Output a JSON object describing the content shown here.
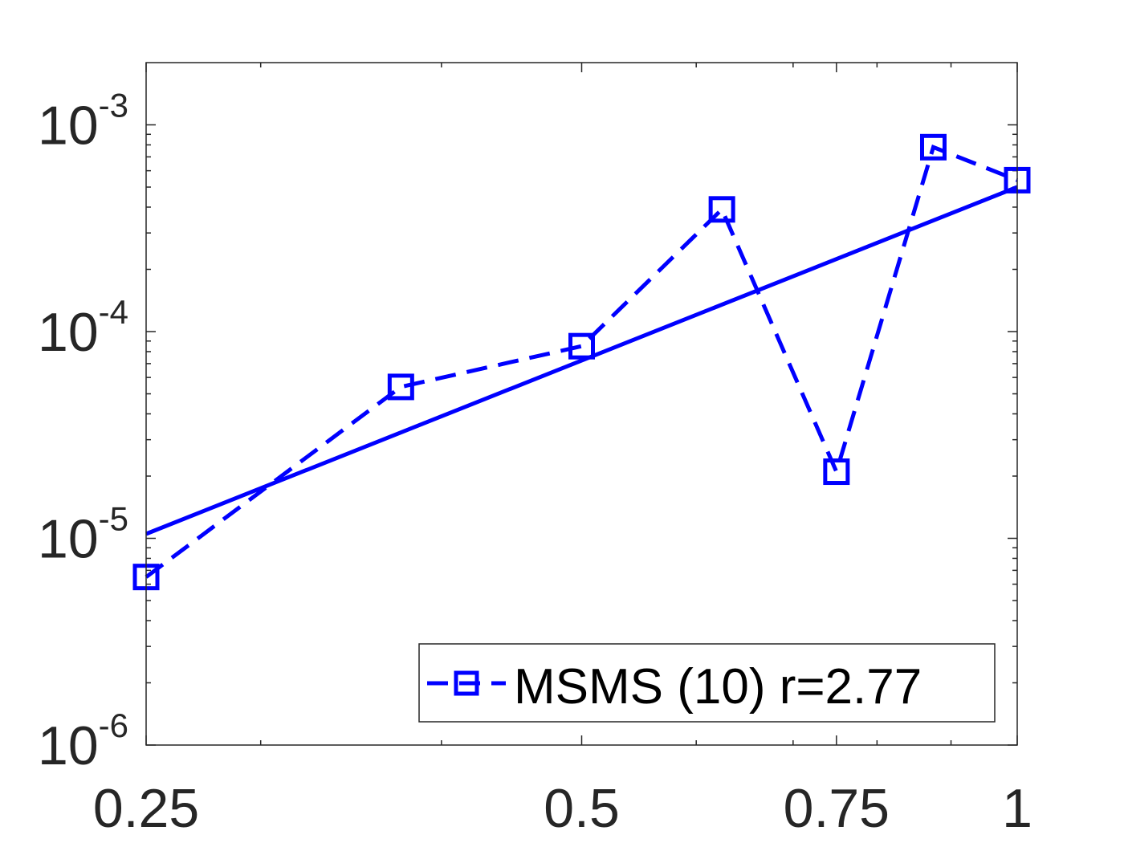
{
  "chart_data": {
    "type": "line",
    "x_scale": "log",
    "y_scale": "log",
    "xlim": [
      0.25,
      1
    ],
    "ylim": [
      1e-06,
      0.002
    ],
    "x_ticks": [
      {
        "value": 0.25,
        "label": "0.25"
      },
      {
        "value": 0.5,
        "label": "0.5"
      },
      {
        "value": 0.75,
        "label": "0.75"
      },
      {
        "value": 1,
        "label": "1"
      }
    ],
    "y_ticks": [
      {
        "value": 1e-06,
        "base": "10",
        "exp": "-6"
      },
      {
        "value": 1e-05,
        "base": "10",
        "exp": "-5"
      },
      {
        "value": 0.0001,
        "base": "10",
        "exp": "-4"
      },
      {
        "value": 0.001,
        "base": "10",
        "exp": "-3"
      }
    ],
    "series": [
      {
        "name": "MSMS (10) r=2.77",
        "style": "dashed",
        "marker": "square",
        "color": "#0000ff",
        "x": [
          0.25,
          0.375,
          0.5,
          0.625,
          0.75,
          0.875,
          1
        ],
        "y": [
          6.5e-06,
          5.4e-05,
          8.5e-05,
          0.00039,
          2.1e-05,
          0.00078,
          0.00054
        ]
      },
      {
        "style": "solid",
        "marker": "none",
        "color": "#0000ff",
        "x": [
          0.25,
          1
        ],
        "y": [
          1.05e-05,
          0.0005
        ]
      }
    ],
    "legend": {
      "position": "bottom-right",
      "entries": [
        "MSMS (10) r=2.77"
      ]
    },
    "grid": false
  }
}
